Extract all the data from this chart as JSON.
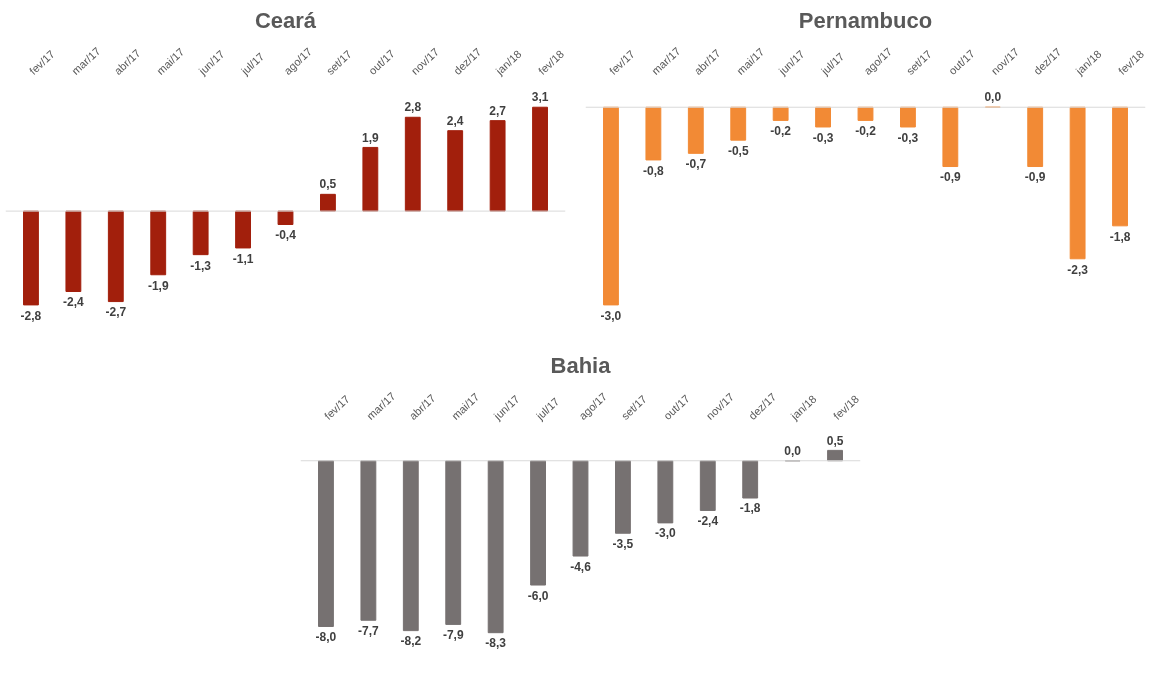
{
  "chart_data": [
    {
      "type": "bar",
      "title": "Ceará",
      "categories": [
        "fev/17",
        "mar/17",
        "abr/17",
        "mai/17",
        "jun/17",
        "jul/17",
        "ago/17",
        "set/17",
        "out/17",
        "nov/17",
        "dez/17",
        "jan/18",
        "fev/18"
      ],
      "values": [
        -2.8,
        -2.4,
        -2.7,
        -1.9,
        -1.3,
        -1.1,
        -0.4,
        0.5,
        1.9,
        2.8,
        2.4,
        2.7,
        3.1
      ],
      "color": "#a21f0c",
      "value_labels": [
        "-2,8",
        "-2,4",
        "-2,7",
        "-1,9",
        "-1,3",
        "-1,1",
        "-0,4",
        "0,5",
        "1,9",
        "2,8",
        "2,4",
        "2,7",
        "3,1"
      ]
    },
    {
      "type": "bar",
      "title": "Pernambuco",
      "categories": [
        "fev/17",
        "mar/17",
        "abr/17",
        "mai/17",
        "jun/17",
        "jul/17",
        "ago/17",
        "set/17",
        "out/17",
        "nov/17",
        "dez/17",
        "jan/18",
        "fev/18"
      ],
      "values": [
        -3.0,
        -0.8,
        -0.7,
        -0.5,
        -0.2,
        -0.3,
        -0.2,
        -0.3,
        -0.9,
        0.0,
        -0.9,
        -2.3,
        -1.8
      ],
      "color": "#f28a35",
      "value_labels": [
        "-3,0",
        "-0,8",
        "-0,7",
        "-0,5",
        "-0,2",
        "-0,3",
        "-0,2",
        "-0,3",
        "-0,9",
        "0,0",
        "-0,9",
        "-2,3",
        "-1,8"
      ]
    },
    {
      "type": "bar",
      "title": "Bahia",
      "categories": [
        "fev/17",
        "mar/17",
        "abr/17",
        "mai/17",
        "jun/17",
        "jul/17",
        "ago/17",
        "set/17",
        "out/17",
        "nov/17",
        "dez/17",
        "jan/18",
        "fev/18"
      ],
      "values": [
        -8.0,
        -7.7,
        -8.2,
        -7.9,
        -8.3,
        -6.0,
        -4.6,
        -3.5,
        -3.0,
        -2.4,
        -1.8,
        0.0,
        0.5
      ],
      "color": "#767171",
      "value_labels": [
        "-8,0",
        "-7,7",
        "-8,2",
        "-7,9",
        "-8,3",
        "-6,0",
        "-4,6",
        "-3,5",
        "-3,0",
        "-2,4",
        "-1,8",
        "0,0",
        "0,5"
      ]
    }
  ]
}
